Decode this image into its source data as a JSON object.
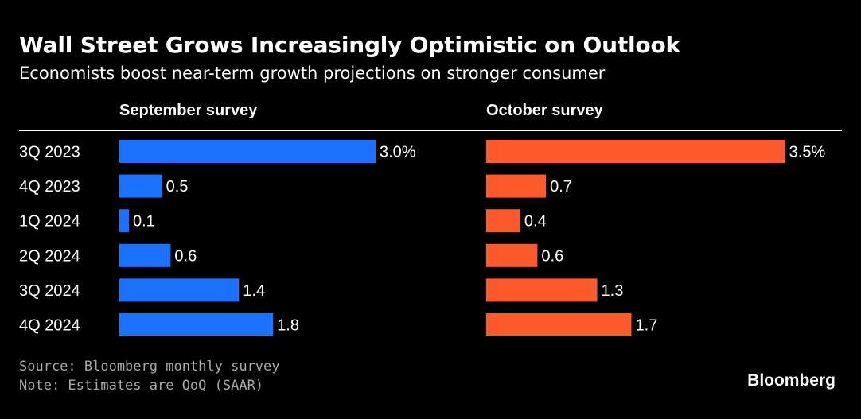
{
  "colors": {
    "background": "#000000",
    "september": "#1a72ff",
    "october": "#ff5a2e",
    "text": "#ffffff",
    "footnote": "#a9a9a9"
  },
  "header": {
    "title": "Wall Street Grows Increasingly Optimistic on Outlook",
    "subtitle": "Economists boost near-term growth projections on stronger consumer"
  },
  "chart_data": {
    "type": "bar",
    "orientation": "horizontal",
    "categories": [
      "3Q 2023",
      "4Q 2023",
      "1Q 2024",
      "2Q 2024",
      "3Q 2024",
      "4Q 2024"
    ],
    "series": [
      {
        "name": "September survey",
        "values": [
          3.0,
          0.5,
          0.1,
          0.6,
          1.4,
          1.8
        ],
        "labels": [
          "3.0%",
          "0.5",
          "0.1",
          "0.6",
          "1.4",
          "1.8"
        ]
      },
      {
        "name": "October survey",
        "values": [
          3.5,
          0.7,
          0.4,
          0.6,
          1.3,
          1.7
        ],
        "labels": [
          "3.5%",
          "0.7",
          "0.4",
          "0.6",
          "1.3",
          "1.7"
        ]
      }
    ],
    "xlim": [
      0,
      3.5
    ],
    "layout": "small-multiples side by side",
    "grid": false
  },
  "footer": {
    "source": "Source: Bloomberg monthly survey",
    "note": "Note: Estimates are QoQ (SAAR)",
    "brand": "Bloomberg"
  }
}
